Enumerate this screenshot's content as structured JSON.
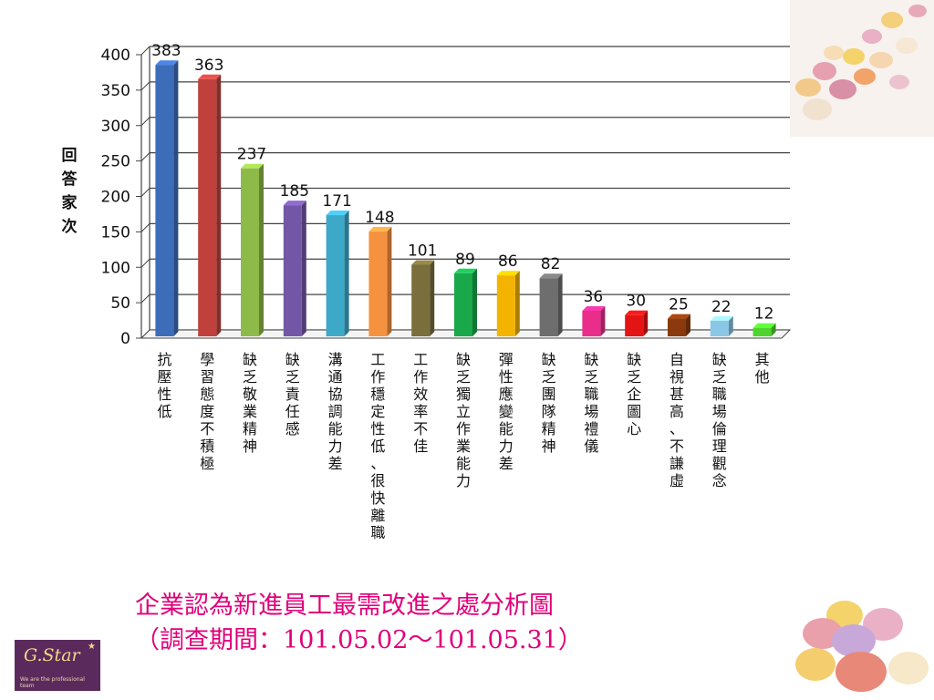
{
  "chart_data": {
    "type": "bar",
    "ylabel": "回答家次",
    "ylim": [
      0,
      400
    ],
    "yticks": [
      0,
      50,
      100,
      150,
      200,
      250,
      300,
      350,
      400
    ],
    "grid": true,
    "categories": [
      "抗壓性低",
      "學習態度不積極",
      "缺乏敬業精神",
      "缺乏責任感",
      "溝通協調能力差",
      "工作穩定性低、很快離職",
      "工作效率不佳",
      "缺乏獨立作業能力",
      "彈性應變能力差",
      "缺乏團隊精神",
      "缺乏職場禮儀",
      "缺乏企圖心",
      "自視甚高、不謙虛",
      "缺乏職場倫理觀念",
      "其他"
    ],
    "values": [
      383,
      363,
      237,
      185,
      171,
      148,
      101,
      89,
      86,
      82,
      36,
      30,
      25,
      22,
      12
    ],
    "colors": [
      "#3d6cb8",
      "#c0403c",
      "#8dba48",
      "#7356a6",
      "#3ea8c9",
      "#f59240",
      "#7a6e3c",
      "#19a84a",
      "#f4b300",
      "#6e6e6e",
      "#ea2d8a",
      "#e31414",
      "#8a3a0c",
      "#8ac7e6",
      "#4fd42e"
    ]
  },
  "caption": {
    "line1": "企業認為新進員工最需改進之處分析圖",
    "line2": "（調查期間：101.05.02～101.05.31）"
  },
  "logo": {
    "name": "G.Star",
    "tagline": "We are the professional team"
  }
}
